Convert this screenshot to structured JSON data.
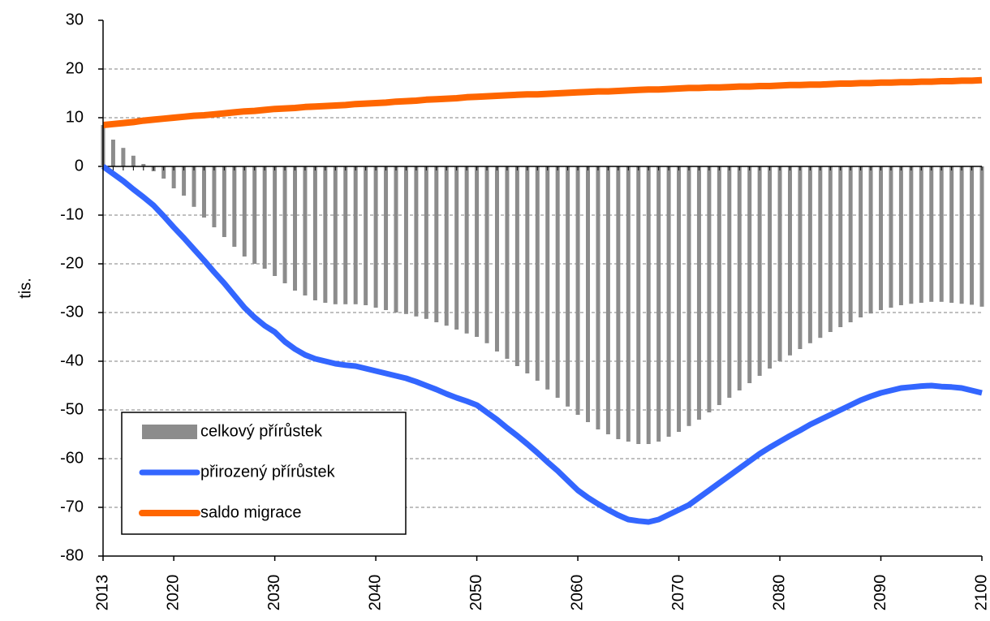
{
  "chart_data": {
    "type": "bar",
    "y_label": "tis.",
    "x": [
      2013,
      2014,
      2015,
      2016,
      2017,
      2018,
      2019,
      2020,
      2021,
      2022,
      2023,
      2024,
      2025,
      2026,
      2027,
      2028,
      2029,
      2030,
      2031,
      2032,
      2033,
      2034,
      2035,
      2036,
      2037,
      2038,
      2039,
      2040,
      2041,
      2042,
      2043,
      2044,
      2045,
      2046,
      2047,
      2048,
      2049,
      2050,
      2051,
      2052,
      2053,
      2054,
      2055,
      2056,
      2057,
      2058,
      2059,
      2060,
      2061,
      2062,
      2063,
      2064,
      2065,
      2066,
      2067,
      2068,
      2069,
      2070,
      2071,
      2072,
      2073,
      2074,
      2075,
      2076,
      2077,
      2078,
      2079,
      2080,
      2081,
      2082,
      2083,
      2084,
      2085,
      2086,
      2087,
      2088,
      2089,
      2090,
      2091,
      2092,
      2093,
      2094,
      2095,
      2096,
      2097,
      2098,
      2099,
      2100
    ],
    "series": [
      {
        "name": "celkový přírůstek",
        "type": "bar",
        "color": "#8c8c8c",
        "values": [
          8.5,
          5.5,
          3.8,
          2.2,
          0.5,
          -1,
          -2.5,
          -4.5,
          -6,
          -8.3,
          -10.5,
          -12.5,
          -14.5,
          -16.5,
          -18.5,
          -20,
          -21,
          -22.5,
          -24,
          -25.5,
          -26.5,
          -27.5,
          -28,
          -28.3,
          -28.3,
          -28.3,
          -28.5,
          -29,
          -29.5,
          -30,
          -30.3,
          -30.8,
          -31.3,
          -32,
          -32.7,
          -33.5,
          -34.3,
          -35,
          -36.3,
          -38,
          -39.5,
          -41,
          -42.5,
          -44,
          -45.8,
          -47.5,
          -49.3,
          -51,
          -52.5,
          -54,
          -55,
          -56,
          -56.5,
          -57,
          -57,
          -56.5,
          -55.5,
          -54.5,
          -53.3,
          -52,
          -50.5,
          -49,
          -47.5,
          -46,
          -44.5,
          -43,
          -41.5,
          -40,
          -38.8,
          -37.5,
          -36.3,
          -35.2,
          -34,
          -33,
          -32,
          -31,
          -30.2,
          -29.5,
          -29,
          -28.5,
          -28.2,
          -28,
          -27.8,
          -27.8,
          -28,
          -28.2,
          -28.4,
          -28.8
        ]
      },
      {
        "name": "přirozený přírůstek",
        "type": "line",
        "color": "#3366ff",
        "values": [
          0,
          -1.5,
          -3,
          -4.7,
          -6.3,
          -8,
          -10.2,
          -12.5,
          -14.7,
          -17,
          -19.3,
          -21.7,
          -24,
          -26.5,
          -29,
          -31,
          -32.7,
          -34,
          -36,
          -37.5,
          -38.7,
          -39.5,
          -40,
          -40.5,
          -40.8,
          -41,
          -41.5,
          -42,
          -42.5,
          -43,
          -43.5,
          -44.2,
          -45,
          -45.8,
          -46.7,
          -47.5,
          -48.2,
          -49,
          -50.5,
          -52,
          -53.7,
          -55.3,
          -57,
          -58.8,
          -60.7,
          -62.5,
          -64.5,
          -66.5,
          -68,
          -69.3,
          -70.5,
          -71.6,
          -72.5,
          -72.8,
          -73,
          -72.5,
          -71.5,
          -70.5,
          -69.5,
          -68,
          -66.5,
          -65,
          -63.5,
          -62,
          -60.5,
          -59,
          -57.7,
          -56.5,
          -55.3,
          -54.2,
          -53,
          -52,
          -51,
          -50,
          -49,
          -48,
          -47.2,
          -46.5,
          -46,
          -45.5,
          -45.3,
          -45.1,
          -45,
          -45.2,
          -45.3,
          -45.5,
          -46,
          -46.5
        ]
      },
      {
        "name": "saldo migrace",
        "type": "line",
        "color": "#ff6600",
        "values": [
          8.5,
          8.7,
          8.9,
          9.1,
          9.4,
          9.6,
          9.8,
          10.0,
          10.2,
          10.4,
          10.5,
          10.7,
          10.9,
          11.1,
          11.3,
          11.4,
          11.6,
          11.8,
          11.9,
          12.0,
          12.2,
          12.3,
          12.4,
          12.5,
          12.6,
          12.8,
          12.9,
          13.0,
          13.1,
          13.3,
          13.4,
          13.5,
          13.7,
          13.8,
          13.9,
          14.0,
          14.2,
          14.3,
          14.4,
          14.5,
          14.6,
          14.7,
          14.8,
          14.8,
          14.9,
          15.0,
          15.1,
          15.2,
          15.3,
          15.4,
          15.4,
          15.5,
          15.6,
          15.7,
          15.8,
          15.8,
          15.9,
          16.0,
          16.1,
          16.1,
          16.2,
          16.2,
          16.3,
          16.4,
          16.4,
          16.5,
          16.5,
          16.6,
          16.7,
          16.7,
          16.8,
          16.8,
          16.9,
          17.0,
          17.0,
          17.1,
          17.1,
          17.2,
          17.2,
          17.3,
          17.3,
          17.4,
          17.4,
          17.5,
          17.5,
          17.6,
          17.6,
          17.7
        ]
      }
    ],
    "xlim": [
      2013,
      2100
    ],
    "xticks": [
      2013,
      2020,
      2030,
      2040,
      2050,
      2060,
      2070,
      2080,
      2090,
      2100
    ],
    "ylim": [
      -80,
      30
    ],
    "yticks": [
      -80,
      -70,
      -60,
      -50,
      -40,
      -30,
      -20,
      -10,
      0,
      10,
      20,
      30
    ],
    "grid": true,
    "legend": "lower left"
  }
}
